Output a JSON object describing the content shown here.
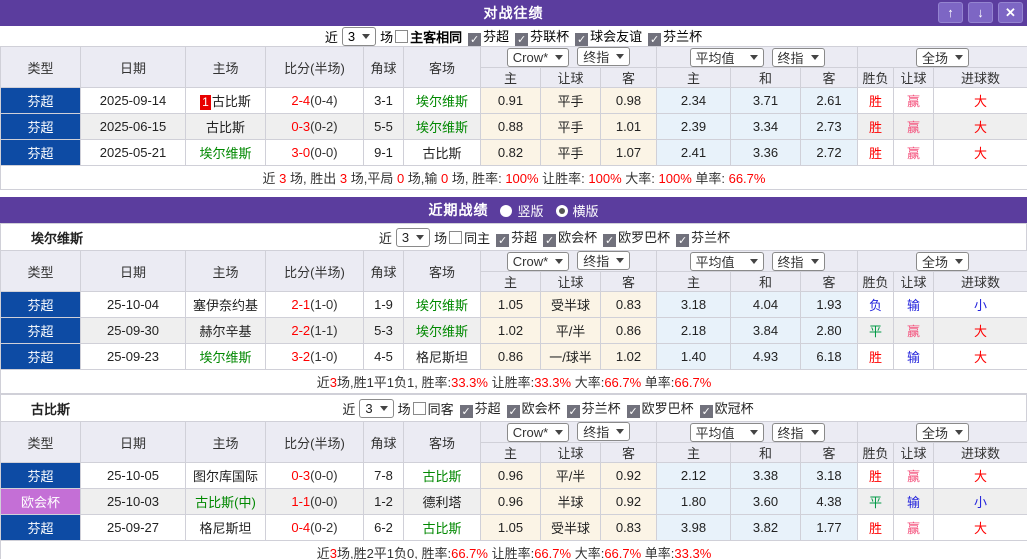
{
  "window": {
    "title": "对战往绩"
  },
  "icons": {
    "up": "↑",
    "down": "↓",
    "close": "✕",
    "check": "✓"
  },
  "colors": {
    "titlebar_purple": "#5B3D9E",
    "button_purple": "#7D66C4",
    "league_blue": "#0D4BA4",
    "league_purple": "#C46FD6",
    "team_green": "#008800",
    "score_red": "#FF0000",
    "win_red": "#FF0000",
    "win_pink": "#F4517C",
    "draw_green": "#009944",
    "lose_blue": "#2323DC",
    "handicap_odds_bg": "#FBF4E6",
    "average_odds_bg": "#E8F2FA",
    "header_bg": "#EBEBF3"
  },
  "filter_labels": {
    "near": "近",
    "games": "场",
    "count": "3"
  },
  "thead": {
    "cols": [
      "类型",
      "日期",
      "主场",
      "比分(半场)",
      "角球",
      "客场"
    ],
    "sub": [
      "主",
      "让球",
      "客",
      "主",
      "和",
      "客",
      "胜负",
      "让球",
      "进球数"
    ],
    "dropdowns": [
      "Crow*",
      "终指",
      "平均值",
      "终指",
      "全场"
    ]
  },
  "h2h": {
    "filter": {
      "same_label": "主客相同",
      "leagues": [
        "芬超",
        "芬联杯",
        "球会友谊",
        "芬兰杯"
      ]
    },
    "rows": [
      {
        "type": "芬超",
        "type_cls": "blue",
        "date": "2025-09-14",
        "home": {
          "name": "古比斯",
          "cls": "k",
          "badge": "1"
        },
        "score": "2-4",
        "half": "(0-4)",
        "corner": "3-1",
        "away": {
          "name": "埃尔维斯",
          "cls": "g"
        },
        "let": [
          "0.91",
          "平手",
          "0.98"
        ],
        "avg": [
          "2.34",
          "3.71",
          "2.61"
        ],
        "res": [
          {
            "t": "胜",
            "c": "r"
          },
          {
            "t": "赢",
            "c": "p"
          },
          {
            "t": "大",
            "c": "r"
          }
        ]
      },
      {
        "type": "芬超",
        "type_cls": "blue",
        "date": "2025-06-15",
        "home": {
          "name": "古比斯",
          "cls": "k"
        },
        "score": "0-3",
        "half": "(0-2)",
        "corner": "5-5",
        "away": {
          "name": "埃尔维斯",
          "cls": "g"
        },
        "let": [
          "0.88",
          "平手",
          "1.01"
        ],
        "avg": [
          "2.39",
          "3.34",
          "2.73"
        ],
        "res": [
          {
            "t": "胜",
            "c": "r"
          },
          {
            "t": "赢",
            "c": "p"
          },
          {
            "t": "大",
            "c": "r"
          }
        ]
      },
      {
        "type": "芬超",
        "type_cls": "blue",
        "date": "2025-05-21",
        "home": {
          "name": "埃尔维斯",
          "cls": "g"
        },
        "score": "3-0",
        "half": "(0-0)",
        "corner": "9-1",
        "away": {
          "name": "古比斯",
          "cls": "k"
        },
        "let": [
          "0.82",
          "平手",
          "1.07"
        ],
        "avg": [
          "2.41",
          "3.36",
          "2.72"
        ],
        "res": [
          {
            "t": "胜",
            "c": "r"
          },
          {
            "t": "赢",
            "c": "p"
          },
          {
            "t": "大",
            "c": "r"
          }
        ]
      }
    ],
    "summary": [
      {
        "t": "近 ",
        "c": "k"
      },
      {
        "t": "3",
        "c": "r"
      },
      {
        "t": " 场, 胜出 ",
        "c": "k"
      },
      {
        "t": "3",
        "c": "r"
      },
      {
        "t": " 场,平局 ",
        "c": "k"
      },
      {
        "t": "0",
        "c": "r"
      },
      {
        "t": " 场,输 ",
        "c": "k"
      },
      {
        "t": "0",
        "c": "r"
      },
      {
        "t": " 场, 胜率: ",
        "c": "k"
      },
      {
        "t": "100%",
        "c": "r"
      },
      {
        "t": " 让胜率: ",
        "c": "k"
      },
      {
        "t": "100%",
        "c": "r"
      },
      {
        "t": " 大率: ",
        "c": "k"
      },
      {
        "t": "100%",
        "c": "r"
      },
      {
        "t": " 单率: ",
        "c": "k"
      },
      {
        "t": "66.7%",
        "c": "r"
      }
    ]
  },
  "recent": {
    "title": "近期战绩",
    "radios": [
      {
        "label": "竖版",
        "selected": false
      },
      {
        "label": "横版",
        "selected": true
      }
    ]
  },
  "sections": [
    {
      "name": "埃尔维斯",
      "filter": {
        "same_label": "同主",
        "leagues": [
          "芬超",
          "欧会杯",
          "欧罗巴杯",
          "芬兰杯"
        ]
      },
      "rows": [
        {
          "type": "芬超",
          "type_cls": "blue",
          "date": "25-10-04",
          "home": {
            "name": "塞伊奈约基",
            "cls": "k"
          },
          "score": "2-1",
          "half": "(1-0)",
          "corner": "1-9",
          "away": {
            "name": "埃尔维斯",
            "cls": "g"
          },
          "let": [
            "1.05",
            "受半球",
            "0.83"
          ],
          "avg": [
            "3.18",
            "4.04",
            "1.93"
          ],
          "res": [
            {
              "t": "负",
              "c": "b"
            },
            {
              "t": "输",
              "c": "b"
            },
            {
              "t": "小",
              "c": "b"
            }
          ]
        },
        {
          "type": "芬超",
          "type_cls": "blue",
          "date": "25-09-30",
          "home": {
            "name": "赫尔辛基",
            "cls": "k"
          },
          "score": "2-2",
          "half": "(1-1)",
          "corner": "5-3",
          "away": {
            "name": "埃尔维斯",
            "cls": "g"
          },
          "let": [
            "1.02",
            "平/半",
            "0.86"
          ],
          "avg": [
            "2.18",
            "3.84",
            "2.80"
          ],
          "res": [
            {
              "t": "平",
              "c": "g"
            },
            {
              "t": "赢",
              "c": "p"
            },
            {
              "t": "大",
              "c": "r"
            }
          ]
        },
        {
          "type": "芬超",
          "type_cls": "blue",
          "date": "25-09-23",
          "home": {
            "name": "埃尔维斯",
            "cls": "g"
          },
          "score": "3-2",
          "half": "(1-0)",
          "corner": "4-5",
          "away": {
            "name": "格尼斯坦",
            "cls": "k"
          },
          "let": [
            "0.86",
            "一/球半",
            "1.02"
          ],
          "avg": [
            "1.40",
            "4.93",
            "6.18"
          ],
          "res": [
            {
              "t": "胜",
              "c": "r"
            },
            {
              "t": "输",
              "c": "b"
            },
            {
              "t": "大",
              "c": "r"
            }
          ]
        }
      ],
      "summary": [
        {
          "t": "近",
          "c": "k"
        },
        {
          "t": "3",
          "c": "r"
        },
        {
          "t": "场,胜1平1负1, 胜率:",
          "c": "k"
        },
        {
          "t": "33.3%",
          "c": "r"
        },
        {
          "t": " 让胜率:",
          "c": "k"
        },
        {
          "t": "33.3%",
          "c": "r"
        },
        {
          "t": " 大率:",
          "c": "k"
        },
        {
          "t": "66.7%",
          "c": "r"
        },
        {
          "t": " 单率:",
          "c": "k"
        },
        {
          "t": "66.7%",
          "c": "r"
        }
      ]
    },
    {
      "name": "古比斯",
      "filter": {
        "same_label": "同客",
        "leagues": [
          "芬超",
          "欧会杯",
          "芬兰杯",
          "欧罗巴杯",
          "欧冠杯"
        ]
      },
      "rows": [
        {
          "type": "芬超",
          "type_cls": "blue",
          "date": "25-10-05",
          "home": {
            "name": "图尔库国际",
            "cls": "k"
          },
          "score": "0-3",
          "half": "(0-0)",
          "corner": "7-8",
          "away": {
            "name": "古比斯",
            "cls": "g"
          },
          "let": [
            "0.96",
            "平/半",
            "0.92"
          ],
          "avg": [
            "2.12",
            "3.38",
            "3.18"
          ],
          "res": [
            {
              "t": "胜",
              "c": "r"
            },
            {
              "t": "赢",
              "c": "p"
            },
            {
              "t": "大",
              "c": "r"
            }
          ]
        },
        {
          "type": "欧会杯",
          "type_cls": "purple",
          "date": "25-10-03",
          "home": {
            "name": "古比斯(中)",
            "cls": "g"
          },
          "score": "1-1",
          "half": "(0-0)",
          "corner": "1-2",
          "away": {
            "name": "德利塔",
            "cls": "k"
          },
          "let": [
            "0.96",
            "半球",
            "0.92"
          ],
          "avg": [
            "1.80",
            "3.60",
            "4.38"
          ],
          "res": [
            {
              "t": "平",
              "c": "g"
            },
            {
              "t": "输",
              "c": "b"
            },
            {
              "t": "小",
              "c": "b"
            }
          ]
        },
        {
          "type": "芬超",
          "type_cls": "blue",
          "date": "25-09-27",
          "home": {
            "name": "格尼斯坦",
            "cls": "k"
          },
          "score": "0-4",
          "half": "(0-2)",
          "corner": "6-2",
          "away": {
            "name": "古比斯",
            "cls": "g"
          },
          "let": [
            "1.05",
            "受半球",
            "0.83"
          ],
          "avg": [
            "3.98",
            "3.82",
            "1.77"
          ],
          "res": [
            {
              "t": "胜",
              "c": "r"
            },
            {
              "t": "赢",
              "c": "p"
            },
            {
              "t": "大",
              "c": "r"
            }
          ]
        }
      ],
      "summary": [
        {
          "t": "近",
          "c": "k"
        },
        {
          "t": "3",
          "c": "r"
        },
        {
          "t": "场,胜2平1负0, 胜率:",
          "c": "k"
        },
        {
          "t": "66.7%",
          "c": "r"
        },
        {
          "t": " 让胜率:",
          "c": "k"
        },
        {
          "t": "66.7%",
          "c": "r"
        },
        {
          "t": " 大率:",
          "c": "k"
        },
        {
          "t": "66.7%",
          "c": "r"
        },
        {
          "t": " 单率:",
          "c": "k"
        },
        {
          "t": "33.3%",
          "c": "r"
        }
      ]
    }
  ]
}
